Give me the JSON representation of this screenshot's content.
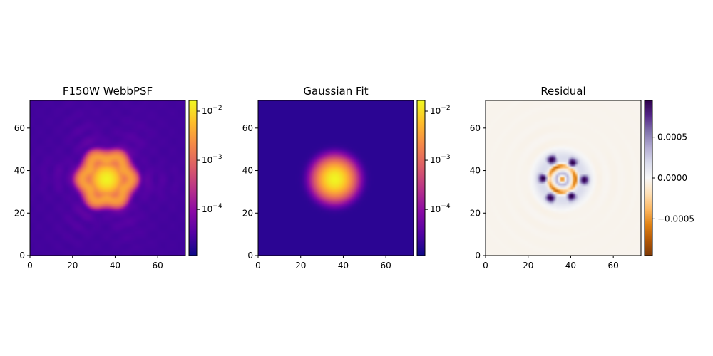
{
  "chart_data": [
    {
      "type": "heatmap",
      "title": "F150W WebbPSF",
      "colormap": "plasma",
      "color_scale": "log",
      "xlim": [
        0,
        73
      ],
      "ylim": [
        0,
        73
      ],
      "x_ticks": [
        0,
        20,
        40,
        60
      ],
      "y_ticks": [
        0,
        20,
        40,
        60
      ],
      "colorbar": {
        "range": [
          1.15e-05,
          0.0165
        ],
        "ticks": [
          {
            "value": 0.0001,
            "mantissa": "10",
            "exponent": "−4"
          },
          {
            "value": 0.001,
            "mantissa": "10",
            "exponent": "−3"
          },
          {
            "value": 0.01,
            "mantissa": "10",
            "exponent": "−2"
          }
        ]
      },
      "center": [
        36,
        36
      ],
      "peak": 0.015,
      "background": 2.5e-05
    },
    {
      "type": "heatmap",
      "title": "Gaussian Fit",
      "colormap": "plasma",
      "color_scale": "log",
      "xlim": [
        0,
        73
      ],
      "ylim": [
        0,
        73
      ],
      "x_ticks": [
        0,
        20,
        40,
        60
      ],
      "y_ticks": [
        0,
        20,
        40,
        60
      ],
      "colorbar": {
        "range": [
          1.15e-05,
          0.0165
        ],
        "ticks": [
          {
            "value": 0.0001,
            "mantissa": "10",
            "exponent": "−4"
          },
          {
            "value": 0.001,
            "mantissa": "10",
            "exponent": "−3"
          },
          {
            "value": 0.01,
            "mantissa": "10",
            "exponent": "−2"
          }
        ]
      },
      "center": [
        36,
        36
      ],
      "peak": 0.015,
      "sigma": 3.8,
      "background": 1.8e-05
    },
    {
      "type": "heatmap",
      "title": "Residual",
      "colormap": "PuOr",
      "color_scale": "linear",
      "xlim": [
        0,
        73
      ],
      "ylim": [
        0,
        73
      ],
      "x_ticks": [
        0,
        20,
        40,
        60
      ],
      "y_ticks": [
        0,
        20,
        40,
        60
      ],
      "colorbar": {
        "range": [
          -0.00095,
          0.00095
        ],
        "ticks": [
          {
            "value": -0.0005,
            "label": "−0.0005"
          },
          {
            "value": 0.0,
            "label": "0.0000"
          },
          {
            "value": 0.0005,
            "label": "0.0005"
          }
        ]
      },
      "center": [
        36,
        36
      ]
    }
  ]
}
